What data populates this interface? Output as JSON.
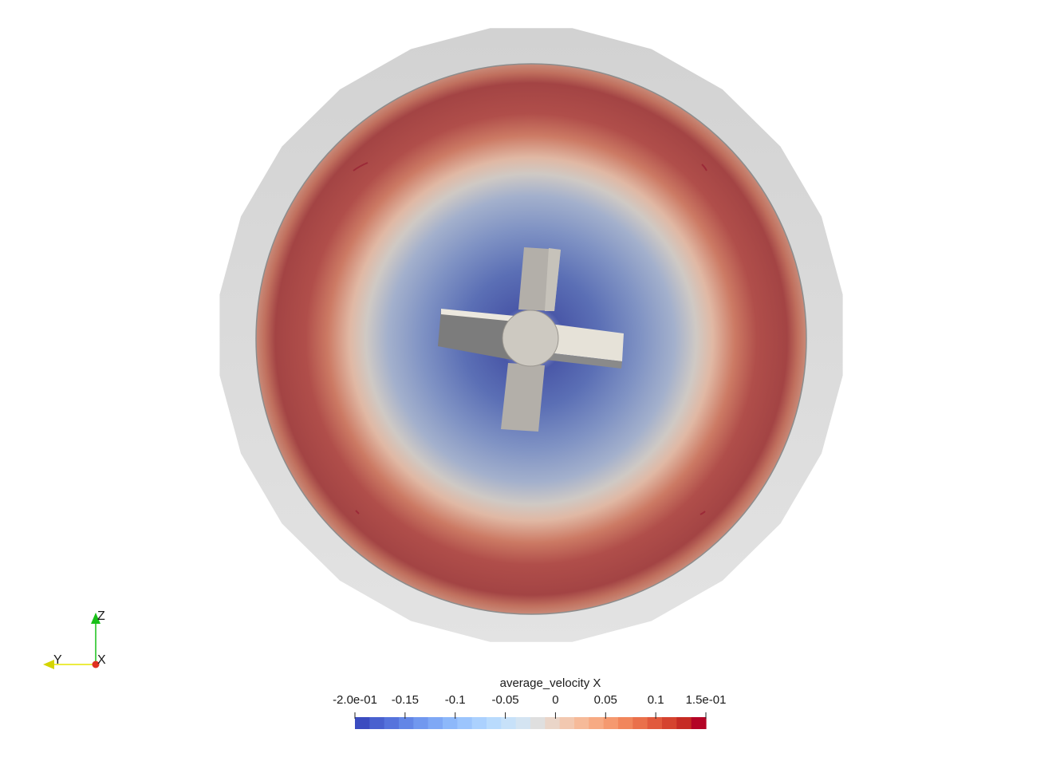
{
  "colorbar": {
    "title": "average_velocity X",
    "range": [
      -0.2,
      0.15
    ],
    "ticks": [
      {
        "value": -0.2,
        "label": "-2.0e-01"
      },
      {
        "value": -0.15,
        "label": "-0.15"
      },
      {
        "value": -0.1,
        "label": "-0.1"
      },
      {
        "value": -0.05,
        "label": "-0.05"
      },
      {
        "value": 0,
        "label": "0"
      },
      {
        "value": 0.05,
        "label": "0.05"
      },
      {
        "value": 0.1,
        "label": "0.1"
      },
      {
        "value": 0.15,
        "label": "1.5e-01"
      }
    ],
    "bands": [
      "#3b4cc0",
      "#4961cf",
      "#5673dc",
      "#6386e6",
      "#7198ef",
      "#7fa8f5",
      "#8db8fa",
      "#9cc5fd",
      "#abd1fe",
      "#b9dbfd",
      "#c7e1f9",
      "#d4e4f2",
      "#dfdfdf",
      "#ead5c8",
      "#f2c8b0",
      "#f6ba99",
      "#f7aa83",
      "#f5996f",
      "#f1865c",
      "#ea704b",
      "#e15a3d",
      "#d5432f",
      "#c62b24",
      "#b40426"
    ]
  },
  "orientation_axes": {
    "z_label": "Z",
    "y_label": "Y",
    "x_label": "X",
    "z_color": "#18c018",
    "y_color": "#e6e600",
    "x_color": "#e03020"
  },
  "scene": {
    "outer_shell_color": "#dcdcdc",
    "impeller_color": "#b8b4ae",
    "impeller_light_color": "#e6e2d8",
    "impeller_dark_color": "#7a7a7a"
  }
}
